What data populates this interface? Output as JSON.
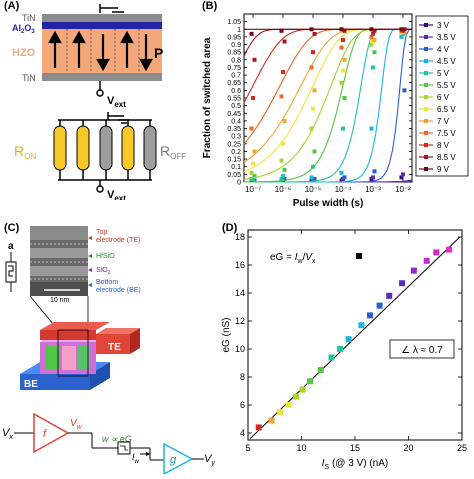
{
  "panel_a": {
    "label": "(A)",
    "top_layer": "TiN",
    "oxide": "Al",
    "oxide_sub": "2",
    "oxide_rest": "O",
    "oxide_sub2": "3",
    "ferro": "HZO",
    "bottom_layer": "TiN",
    "pol": "P",
    "vext": "V",
    "vext_sub": "ext",
    "ron": "R",
    "ron_sub": "ON",
    "roff": "R",
    "roff_sub": "OFF",
    "vext2": "V",
    "vext2_sub": "ext",
    "colors": {
      "ferro": "#f4a879",
      "oxide": "#2323a8",
      "tin": "#8c8c8c",
      "on": "#f6c928",
      "off": "#9d9d9d"
    }
  },
  "panel_b": {
    "label": "(B)"
  },
  "chart_data": [
    {
      "type": "scatter",
      "xlabel": "Pulse width (s)",
      "ylabel": "Fraction of switched area",
      "xscale": "log",
      "xlim": [
        5e-08,
        0.02
      ],
      "ylim": [
        0,
        1.1
      ],
      "xticks": [
        "10⁻⁷",
        "10⁻⁶",
        "10⁻⁵",
        "10⁻⁴",
        "10⁻³",
        "10⁻²"
      ],
      "yticks": [
        "0",
        "0.05",
        "0.1",
        "0.15",
        "0.2",
        "0.25",
        "0.3",
        "0.35",
        "0.4",
        "0.45",
        "0.5",
        "0.55",
        "0.6",
        "0.65",
        "0.7",
        "0.75",
        "0.8",
        "0.85",
        "0.9",
        "0.95",
        "1",
        "1.05"
      ],
      "legend_position": "right",
      "x": [
        1e-07,
        1e-06,
        1e-05,
        0.0001,
        0.001,
        0.01
      ],
      "series": [
        {
          "name": "3 V",
          "color": "#3d0a7a",
          "values": [
            0.01,
            0.01,
            0.01,
            0.01,
            0.02,
            0.03
          ],
          "t0": 3.0,
          "n": 1.2
        },
        {
          "name": "3.5 V",
          "color": "#5b2bb5",
          "values": [
            0.01,
            0.01,
            0.02,
            0.02,
            0.03,
            0.05
          ],
          "t0": 0.8,
          "n": 1.2
        },
        {
          "name": "4 V",
          "color": "#2b5cd6",
          "values": [
            0.01,
            0.02,
            0.02,
            0.03,
            0.07,
            0.6
          ],
          "t0": 0.008,
          "n": 2.5
        },
        {
          "name": "4.5 V",
          "color": "#1bb5de",
          "values": [
            0.02,
            0.02,
            0.03,
            0.06,
            0.35,
            0.95
          ],
          "t0": 0.002,
          "n": 2.0
        },
        {
          "name": "5 V",
          "color": "#21c7a0",
          "values": [
            0.02,
            0.04,
            0.1,
            0.35,
            0.75,
            0.97
          ],
          "t0": 0.0004,
          "n": 1.4
        },
        {
          "name": "5.5 V",
          "color": "#55c442",
          "values": [
            0.04,
            0.08,
            0.2,
            0.55,
            0.85,
            0.98
          ],
          "t0": 0.0001,
          "n": 1.0
        },
        {
          "name": "6 V",
          "color": "#a6d62e",
          "values": [
            0.06,
            0.14,
            0.35,
            0.65,
            0.9,
            0.98
          ],
          "t0": 4e-05,
          "n": 0.6
        },
        {
          "name": "6.5 V",
          "color": "#efe63a",
          "values": [
            0.12,
            0.25,
            0.48,
            0.73,
            0.92,
            0.98
          ],
          "t0": 1e-05,
          "n": 0.5
        },
        {
          "name": "7 V",
          "color": "#f2a530",
          "values": [
            0.2,
            0.4,
            0.6,
            0.8,
            0.93,
            0.98
          ],
          "t0": 4e-06,
          "n": 0.45
        },
        {
          "name": "7.5 V",
          "color": "#ea6a2a",
          "values": [
            0.35,
            0.56,
            0.75,
            0.88,
            0.95,
            0.99
          ],
          "t0": 8e-07,
          "n": 0.45
        },
        {
          "name": "8 V",
          "color": "#cf2d24",
          "values": [
            0.55,
            0.72,
            0.85,
            0.93,
            0.97,
            0.99
          ],
          "t0": 1e-07,
          "n": 0.45
        },
        {
          "name": "8.5 V",
          "color": "#a51624",
          "values": [
            0.8,
            0.92,
            0.97,
            0.99,
            0.99,
            1.0
          ],
          "t0": 2e-08,
          "n": 0.6
        },
        {
          "name": "9 V",
          "color": "#6e0b14",
          "values": [
            0.97,
            0.99,
            1.0,
            1.0,
            1.0,
            1.0
          ],
          "t0": 1e-09,
          "n": 0.8
        }
      ]
    },
    {
      "type": "scatter",
      "xlabel_main": "I",
      "xlabel_sub": "S",
      "xlabel_rest": " (@ 3 V) (nA)",
      "ylabel": "eG (nS)",
      "xlim": [
        5,
        25
      ],
      "ylim": [
        3.5,
        18.5
      ],
      "xticks": [
        5,
        10,
        15,
        20,
        25
      ],
      "yticks": [
        4,
        6,
        8,
        10,
        12,
        14,
        16,
        18
      ],
      "x": [
        6.0,
        7.2,
        8.0,
        8.8,
        9.5,
        10.1,
        10.8,
        11.8,
        12.8,
        13.6,
        14.4,
        15.6,
        16.4,
        17.3,
        18.2,
        19.4,
        20.5,
        21.7,
        22.6,
        23.8
      ],
      "y": [
        4.4,
        4.9,
        5.5,
        6.0,
        6.6,
        7.1,
        7.7,
        8.5,
        9.4,
        10.0,
        10.7,
        11.7,
        12.4,
        13.1,
        13.8,
        14.7,
        15.6,
        16.3,
        16.9,
        17.1
      ],
      "colors": [
        "#cf2d24",
        "#f2a530",
        "#efe63a",
        "#efe63a",
        "#a6d62e",
        "#a6d62e",
        "#55c442",
        "#55c442",
        "#21c7a0",
        "#21c7a0",
        "#1bb5de",
        "#1bb5de",
        "#2b5cd6",
        "#2b5cd6",
        "#5b2bb5",
        "#5b2bb5",
        "#8e2bc7",
        "#b92ed0",
        "#d12ec0",
        "#e62ec0"
      ],
      "fit": {
        "x": [
          5.2,
          24.8
        ],
        "y": [
          3.6,
          18.0
        ]
      },
      "legend_label": "eG = ",
      "legend_eq_main": "I",
      "legend_eq_sub": "w",
      "legend_eq_mid": "/",
      "legend_eq_main2": "V",
      "legend_eq_sub2": "x",
      "annotation": "∠ λ ≈ 0.7"
    }
  ],
  "panel_c": {
    "label": "(C)",
    "symbol": "a",
    "te": "Top",
    "te2": "electrode (TE)",
    "hfsio": "HfSiO",
    "sio2": "SiO",
    "sio2_sub": "2",
    "be": "Bottom",
    "be2": "electrode (BE)",
    "scale": "10 nm",
    "block_te": "TE",
    "block_be": "BE",
    "vx": "V",
    "vx_sub": "x",
    "f": "f",
    "vw": "V",
    "vw_sub": "w",
    "w_eq": "w ∝ eG",
    "iw": "I",
    "iw_sub": "w",
    "g": "g",
    "vy": "V",
    "vy_sub": "y"
  },
  "panel_d": {
    "label": "(D)"
  }
}
